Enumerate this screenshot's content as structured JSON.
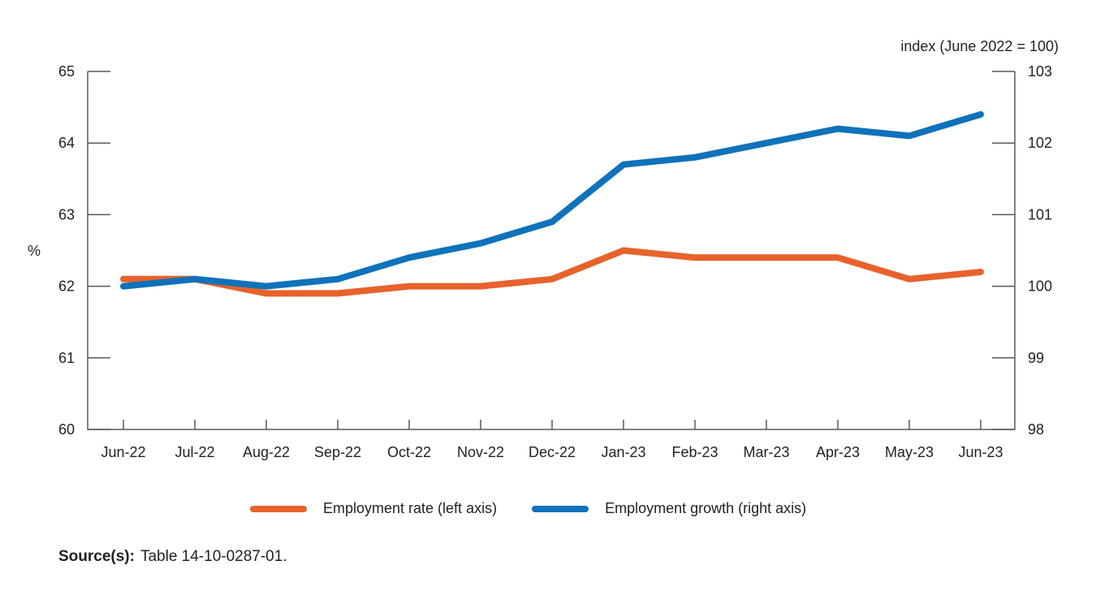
{
  "style": {
    "background_color": "#ffffff",
    "axis_color": "#58595b",
    "text_color": "#231f20"
  },
  "chart_data": {
    "type": "line",
    "categories": [
      "Jun-22",
      "Jul-22",
      "Aug-22",
      "Sep-22",
      "Oct-22",
      "Nov-22",
      "Dec-22",
      "Jan-23",
      "Feb-23",
      "Mar-23",
      "Apr-23",
      "May-23",
      "Jun-23"
    ],
    "series": [
      {
        "name": "Employment rate (left axis)",
        "axis": "left",
        "color": "#e8622c",
        "values": [
          62.1,
          62.1,
          61.9,
          61.9,
          62.0,
          62.0,
          62.1,
          62.5,
          62.4,
          62.4,
          62.4,
          62.1,
          62.2
        ]
      },
      {
        "name": "Employment growth (right axis)",
        "axis": "right",
        "color": "#0f72ba",
        "values": [
          100.0,
          100.1,
          100.0,
          100.1,
          100.4,
          100.6,
          100.9,
          101.7,
          101.8,
          102.0,
          102.2,
          102.1,
          102.4
        ]
      }
    ],
    "left_axis": {
      "label": "%",
      "min": 60,
      "max": 65,
      "ticks": [
        60,
        61,
        62,
        63,
        64,
        65
      ]
    },
    "right_axis": {
      "label": "index (June 2022 = 100)",
      "min": 98,
      "max": 103,
      "ticks": [
        98,
        99,
        100,
        101,
        102,
        103
      ]
    },
    "grid": "off",
    "legend_position": "bottom"
  },
  "source": {
    "label": "Source(s):",
    "value": "Table 14-10-0287-01."
  }
}
